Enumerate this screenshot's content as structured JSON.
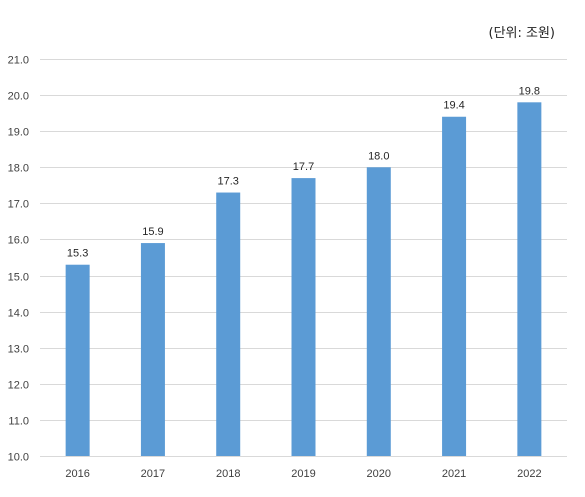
{
  "chart_data": {
    "type": "bar",
    "title": "",
    "unit_note": "(단위: 조원)",
    "categories": [
      "2016",
      "2017",
      "2018",
      "2019",
      "2020",
      "2021",
      "2022"
    ],
    "values": [
      15.3,
      15.9,
      17.3,
      17.7,
      18.0,
      19.4,
      19.8
    ],
    "data_labels": [
      "15.3",
      "15.9",
      "17.3",
      "17.7",
      "18.0",
      "19.4",
      "19.8"
    ],
    "ylim": [
      10.0,
      21.0
    ],
    "yticks": [
      "10.0",
      "11.0",
      "12.0",
      "13.0",
      "14.0",
      "15.0",
      "16.0",
      "17.0",
      "18.0",
      "19.0",
      "20.0",
      "21.0"
    ],
    "xlabel": "",
    "ylabel": "",
    "grid": true,
    "bar_color": "#5b9bd5"
  }
}
